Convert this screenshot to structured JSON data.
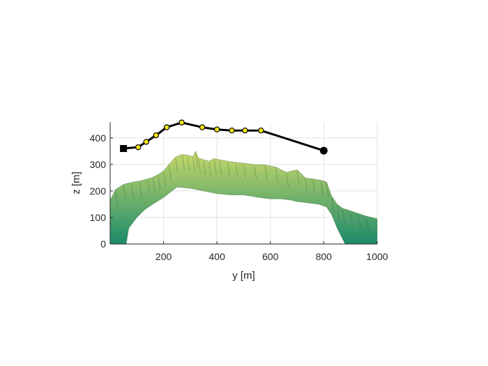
{
  "chart_data": {
    "type": "line",
    "xlabel": "y [m]",
    "ylabel": "z [m]",
    "xlim": [
      0,
      1000
    ],
    "ylim": [
      0,
      460
    ],
    "xticks": [
      200,
      400,
      600,
      800,
      1000
    ],
    "yticks": [
      0,
      100,
      200,
      300,
      400
    ],
    "grid": true,
    "series": [
      {
        "marker": "yellow-circle",
        "line_color": "#000000",
        "x": [
          50,
          105,
          135,
          172,
          212,
          268,
          345,
          400,
          456,
          505,
          565,
          800
        ],
        "y": [
          360,
          365,
          385,
          410,
          440,
          458,
          440,
          432,
          428,
          428,
          428,
          352
        ]
      }
    ],
    "start_point": {
      "x": 50,
      "y": 360,
      "marker": "black-square"
    },
    "end_point": {
      "x": 800,
      "y": 352,
      "marker": "black-circle"
    },
    "terrain": {
      "color_low": "#1b8a6b",
      "color_high": "#c9d96a",
      "top_profile": {
        "x": [
          0,
          20,
          50,
          80,
          110,
          140,
          160,
          180,
          200,
          220,
          245,
          270,
          290,
          310,
          320,
          330,
          350,
          370,
          390,
          410,
          440,
          470,
          500,
          540,
          580,
          620,
          660,
          700,
          730,
          760,
          790,
          810,
          830,
          850,
          870,
          900,
          930,
          960,
          1000
        ],
        "z": [
          165,
          205,
          225,
          232,
          238,
          245,
          252,
          262,
          275,
          300,
          328,
          338,
          335,
          330,
          350,
          325,
          318,
          312,
          322,
          318,
          312,
          308,
          305,
          300,
          298,
          290,
          270,
          280,
          250,
          245,
          240,
          235,
          180,
          150,
          135,
          125,
          115,
          105,
          95
        ]
      },
      "bottom_profile": {
        "x": [
          0,
          60,
          70,
          100,
          130,
          160,
          200,
          250,
          300,
          350,
          400,
          450,
          480,
          500,
          530,
          560,
          600,
          640,
          680,
          700,
          740,
          780,
          810,
          830,
          850,
          880,
          1000
        ],
        "z": [
          0,
          0,
          60,
          100,
          130,
          150,
          175,
          215,
          210,
          200,
          190,
          185,
          185,
          185,
          180,
          175,
          170,
          170,
          165,
          160,
          155,
          150,
          140,
          110,
          60,
          0,
          0
        ]
      }
    }
  }
}
